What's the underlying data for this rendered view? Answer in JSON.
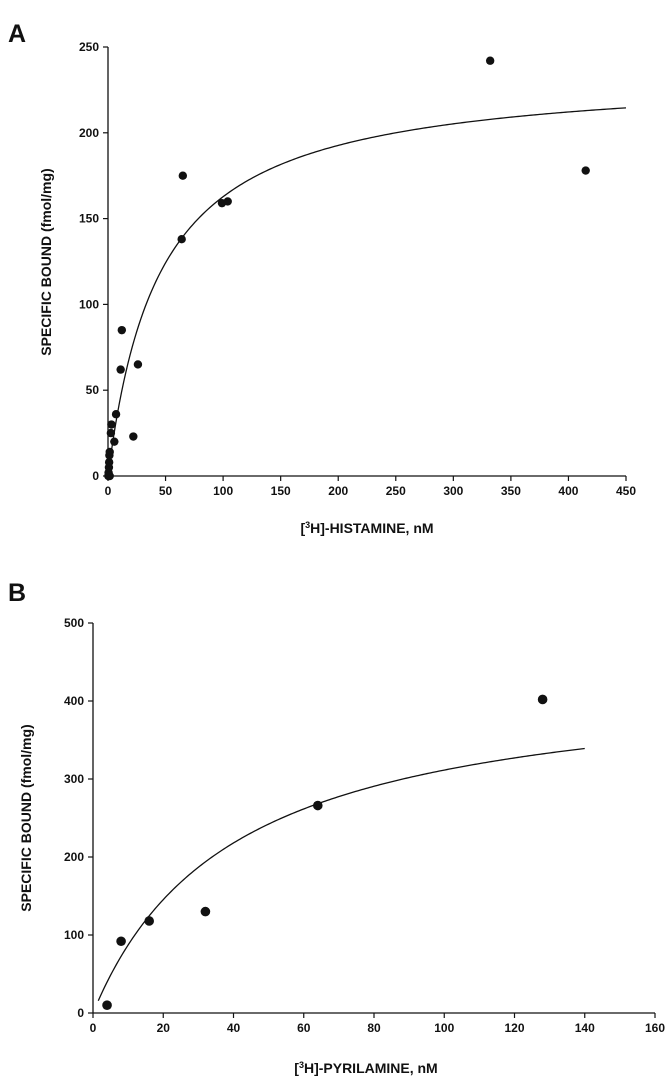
{
  "chart_data": [
    {
      "type": "scatter",
      "panel_label": "A",
      "title": "",
      "xlabel_prefix": "[",
      "xlabel_super": "3",
      "xlabel_suffix": "H]-HISTAMINE, nM",
      "ylabel": "SPECIFIC BOUND (fmol/mg)",
      "xlim": [
        0,
        450
      ],
      "ylim": [
        0,
        250
      ],
      "xticks": [
        0,
        50,
        100,
        150,
        200,
        250,
        300,
        350,
        400,
        450
      ],
      "yticks": [
        0,
        50,
        100,
        150,
        200,
        250
      ],
      "grid": false,
      "series": [
        {
          "points": [
            [
              0.3,
              0
            ],
            [
              0.5,
              2
            ],
            [
              0.8,
              5
            ],
            [
              1.0,
              8
            ],
            [
              1.2,
              12
            ],
            [
              1.5,
              14
            ],
            [
              1.5,
              0
            ],
            [
              2.5,
              25
            ],
            [
              3.0,
              30
            ],
            [
              5.5,
              20
            ],
            [
              7.0,
              36
            ],
            [
              11.0,
              62
            ],
            [
              12.0,
              85
            ],
            [
              22.0,
              23
            ],
            [
              26.0,
              65
            ],
            [
              64.0,
              138
            ],
            [
              65.0,
              175
            ],
            [
              99.0,
              159
            ],
            [
              104.0,
              160
            ],
            [
              332.0,
              242
            ],
            [
              415.0,
              178
            ]
          ]
        }
      ],
      "fit": {
        "model": "hyperbola",
        "bmax": 236,
        "kd": 45,
        "x_from": 0.5,
        "x_to": 450
      }
    },
    {
      "type": "scatter",
      "panel_label": "B",
      "title": "",
      "xlabel_prefix": "[",
      "xlabel_super": "3",
      "xlabel_suffix": "H]-PYRILAMINE, nM",
      "ylabel": "SPECIFIC BOUND (fmol/mg)",
      "xlim": [
        0,
        160
      ],
      "ylim": [
        0,
        500
      ],
      "xticks": [
        0,
        20,
        40,
        60,
        80,
        100,
        120,
        140,
        160
      ],
      "yticks": [
        0,
        100,
        200,
        300,
        400,
        500
      ],
      "grid": false,
      "series": [
        {
          "points": [
            [
              4,
              10
            ],
            [
              8,
              92
            ],
            [
              16,
              118
            ],
            [
              32,
              130
            ],
            [
              64,
              266
            ],
            [
              128,
              402
            ]
          ]
        }
      ],
      "fit": {
        "model": "hyperbola",
        "bmax": 436,
        "kd": 40,
        "x_from": 1.5,
        "x_to": 140
      }
    }
  ]
}
